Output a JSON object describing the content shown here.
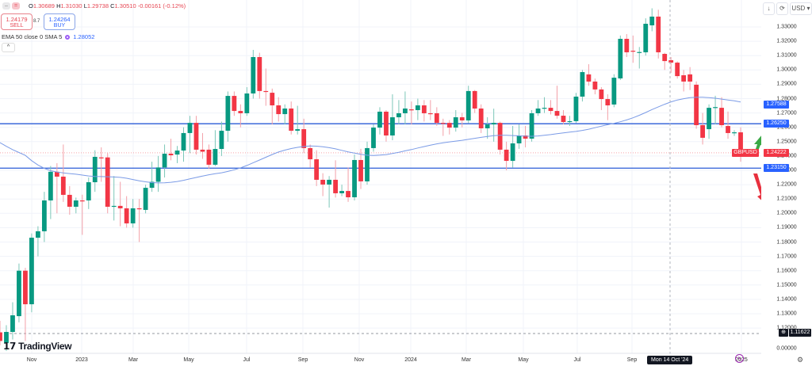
{
  "header": {
    "ohlc": {
      "o_label": "O",
      "o": "1.30689",
      "h_label": "H",
      "h": "1.31030",
      "l_label": "L",
      "l": "1.29738",
      "c_label": "C",
      "c": "1.30510",
      "change": "-0.00161 (-0.12%)"
    },
    "sell": {
      "price": "1.24179",
      "label": "SELL"
    },
    "buy": {
      "price": "1.24264",
      "label": "BUY"
    },
    "spread": "8.7",
    "indicator": {
      "label": "EMA 50 close 0 SMA 5",
      "value": "1.28052"
    },
    "currency": "USD"
  },
  "colors": {
    "up": "#089981",
    "down": "#f23645",
    "level_line": "#2a5bd7",
    "ema": "#7b9be6",
    "price_tag": "#f23645",
    "level_tag": "#2962ff"
  },
  "icons": [
    "minus-icon",
    "toggle-icon",
    "chevron-up-icon",
    "download-arrow-icon",
    "refresh-icon",
    "chevron-down-icon",
    "plus-circle-icon",
    "lightning-icon",
    "settings-icon",
    "arrow-up-icon",
    "arrow-down-icon"
  ],
  "symbol": "GBPUSD",
  "brand": "TradingView",
  "crosshair_date": "Mon 14 Oct '24",
  "chart_data": {
    "type": "candlestick",
    "title": "",
    "xlabel": "",
    "ylabel": "",
    "ylim": [
      1.11,
      1.34
    ],
    "grid": true,
    "y_ticks": [
      "1.33000",
      "1.32000",
      "1.31000",
      "1.30000",
      "1.29000",
      "1.28000",
      "1.27000",
      "1.26000",
      "1.25000",
      "1.24000",
      "1.23000",
      "1.22000",
      "1.21000",
      "1.20000",
      "1.19000",
      "1.18000",
      "1.17000",
      "1.16000",
      "1.15000",
      "1.14000",
      "1.13000",
      "1.12000"
    ],
    "y_zero_label": "0.00000",
    "x_ticks": [
      "Nov",
      "2023",
      "Mar",
      "May",
      "Jul",
      "Sep",
      "Nov",
      "2024",
      "Mar",
      "May",
      "Jul",
      "Sep",
      "2025"
    ],
    "levels": [
      {
        "value": 1.2625,
        "label": "1.26250"
      },
      {
        "value": 1.2315,
        "label": "1.23150"
      }
    ],
    "ema_last": {
      "value": 1.27588,
      "label": "1.27588"
    },
    "last_price": {
      "value": 1.24222,
      "label": "1.24222"
    },
    "marker_price": {
      "value": 1.11622,
      "label": "1.11622"
    },
    "fields": [
      "open",
      "high",
      "low",
      "close"
    ],
    "candles": [
      [
        1.117,
        1.125,
        1.108,
        1.111
      ],
      [
        1.1095,
        1.122,
        1.104,
        1.1173
      ],
      [
        1.1173,
        1.138,
        1.112,
        1.1289
      ],
      [
        1.1283,
        1.165,
        1.124,
        1.16
      ],
      [
        1.16,
        1.162,
        1.111,
        1.1366
      ],
      [
        1.1366,
        1.186,
        1.131,
        1.183
      ],
      [
        1.183,
        1.191,
        1.17,
        1.1875
      ],
      [
        1.1875,
        1.215,
        1.18,
        1.209
      ],
      [
        1.209,
        1.233,
        1.196,
        1.229
      ],
      [
        1.229,
        1.235,
        1.2,
        1.2256
      ],
      [
        1.2256,
        1.248,
        1.208,
        1.2129
      ],
      [
        1.2129,
        1.219,
        1.199,
        1.2046
      ],
      [
        1.2046,
        1.211,
        1.2,
        1.209
      ],
      [
        1.209,
        1.213,
        1.185,
        1.2085
      ],
      [
        1.209,
        1.225,
        1.203,
        1.2217
      ],
      [
        1.2217,
        1.244,
        1.215,
        1.2394
      ],
      [
        1.239,
        1.246,
        1.222,
        1.2385
      ],
      [
        1.239,
        1.242,
        1.2,
        1.2046
      ],
      [
        1.2046,
        1.226,
        1.195,
        1.2052
      ],
      [
        1.2052,
        1.222,
        1.191,
        1.2035
      ],
      [
        1.2035,
        1.212,
        1.19,
        1.193
      ],
      [
        1.193,
        1.21,
        1.19,
        1.2035
      ],
      [
        1.2035,
        1.21,
        1.18,
        1.203
      ],
      [
        1.2024,
        1.22,
        1.2,
        1.2178
      ],
      [
        1.2178,
        1.236,
        1.215,
        1.222
      ],
      [
        1.222,
        1.24,
        1.215,
        1.232
      ],
      [
        1.232,
        1.248,
        1.225,
        1.2416
      ],
      [
        1.2416,
        1.252,
        1.237,
        1.2405
      ],
      [
        1.241,
        1.247,
        1.235,
        1.2438
      ],
      [
        1.2438,
        1.26,
        1.236,
        1.256
      ],
      [
        1.256,
        1.268,
        1.242,
        1.2631
      ],
      [
        1.2631,
        1.268,
        1.241,
        1.2444
      ],
      [
        1.2444,
        1.256,
        1.238,
        1.243
      ],
      [
        1.2444,
        1.248,
        1.231,
        1.2339
      ],
      [
        1.2339,
        1.258,
        1.233,
        1.2449
      ],
      [
        1.2449,
        1.264,
        1.24,
        1.2576
      ],
      [
        1.2576,
        1.285,
        1.25,
        1.2819
      ],
      [
        1.2819,
        1.285,
        1.268,
        1.2714
      ],
      [
        1.2714,
        1.276,
        1.26,
        1.2698
      ],
      [
        1.2698,
        1.288,
        1.268,
        1.2836
      ],
      [
        1.2836,
        1.314,
        1.28,
        1.309
      ],
      [
        1.309,
        1.312,
        1.28,
        1.2853
      ],
      [
        1.2853,
        1.301,
        1.275,
        1.2847
      ],
      [
        1.2841,
        1.287,
        1.262,
        1.2753
      ],
      [
        1.2753,
        1.281,
        1.264,
        1.2692
      ],
      [
        1.2692,
        1.276,
        1.262,
        1.2731
      ],
      [
        1.2731,
        1.278,
        1.255,
        1.2576
      ],
      [
        1.2576,
        1.275,
        1.255,
        1.2587
      ],
      [
        1.2587,
        1.266,
        1.242,
        1.2455
      ],
      [
        1.2455,
        1.248,
        1.232,
        1.2377
      ],
      [
        1.2377,
        1.244,
        1.219,
        1.2234
      ],
      [
        1.2234,
        1.228,
        1.212,
        1.2201
      ],
      [
        1.2201,
        1.226,
        1.204,
        1.2234
      ],
      [
        1.2234,
        1.237,
        1.211,
        1.214
      ],
      [
        1.214,
        1.22,
        1.212,
        1.2156
      ],
      [
        1.2156,
        1.232,
        1.208,
        1.2112
      ],
      [
        1.2112,
        1.241,
        1.209,
        1.2372
      ],
      [
        1.2372,
        1.245,
        1.217,
        1.2223
      ],
      [
        1.2223,
        1.25,
        1.22,
        1.2455
      ],
      [
        1.2455,
        1.262,
        1.243,
        1.2598
      ],
      [
        1.2598,
        1.274,
        1.255,
        1.2709
      ],
      [
        1.2709,
        1.272,
        1.25,
        1.2543
      ],
      [
        1.2543,
        1.283,
        1.251,
        1.267
      ],
      [
        1.267,
        1.279,
        1.262,
        1.2698
      ],
      [
        1.2698,
        1.285,
        1.262,
        1.2731
      ],
      [
        1.2725,
        1.278,
        1.262,
        1.272
      ],
      [
        1.272,
        1.28,
        1.265,
        1.2753
      ],
      [
        1.2753,
        1.279,
        1.264,
        1.2698
      ],
      [
        1.2698,
        1.279,
        1.265,
        1.2693
      ],
      [
        1.2698,
        1.274,
        1.261,
        1.2631
      ],
      [
        1.2631,
        1.266,
        1.254,
        1.2626
      ],
      [
        1.2631,
        1.265,
        1.255,
        1.2598
      ],
      [
        1.2598,
        1.272,
        1.257,
        1.267
      ],
      [
        1.267,
        1.27,
        1.26,
        1.2648
      ],
      [
        1.2648,
        1.289,
        1.263,
        1.2853
      ],
      [
        1.2853,
        1.286,
        1.27,
        1.2731
      ],
      [
        1.2731,
        1.276,
        1.256,
        1.2593
      ],
      [
        1.2593,
        1.267,
        1.252,
        1.262
      ],
      [
        1.262,
        1.273,
        1.25,
        1.2631
      ],
      [
        1.2631,
        1.264,
        1.241,
        1.2444
      ],
      [
        1.2444,
        1.25,
        1.23,
        1.2366
      ],
      [
        1.2366,
        1.261,
        1.232,
        1.2488
      ],
      [
        1.2488,
        1.262,
        1.245,
        1.2543
      ],
      [
        1.2543,
        1.261,
        1.246,
        1.2521
      ],
      [
        1.2521,
        1.272,
        1.25,
        1.2698
      ],
      [
        1.2698,
        1.279,
        1.268,
        1.2731
      ],
      [
        1.2731,
        1.281,
        1.27,
        1.2736
      ],
      [
        1.2736,
        1.279,
        1.269,
        1.2714
      ],
      [
        1.2714,
        1.289,
        1.266,
        1.2681
      ],
      [
        1.2681,
        1.272,
        1.262,
        1.2637
      ],
      [
        1.2637,
        1.268,
        1.261,
        1.2643
      ],
      [
        1.2643,
        1.284,
        1.263,
        1.2814
      ],
      [
        1.2814,
        1.3,
        1.278,
        1.2985
      ],
      [
        1.2969,
        1.304,
        1.289,
        1.2919
      ],
      [
        1.2919,
        1.294,
        1.283,
        1.2864
      ],
      [
        1.2864,
        1.288,
        1.272,
        1.2797
      ],
      [
        1.2797,
        1.283,
        1.265,
        1.2753
      ],
      [
        1.2759,
        1.297,
        1.274,
        1.2946
      ],
      [
        1.2941,
        1.324,
        1.293,
        1.3217
      ],
      [
        1.3217,
        1.325,
        1.309,
        1.3123
      ],
      [
        1.3134,
        1.324,
        1.305,
        1.313
      ],
      [
        1.3123,
        1.316,
        1.301,
        1.3125
      ],
      [
        1.3123,
        1.336,
        1.31,
        1.3322
      ],
      [
        1.3311,
        1.343,
        1.327,
        1.3372
      ],
      [
        1.3372,
        1.342,
        1.308,
        1.3123
      ],
      [
        1.3112,
        1.312,
        1.3,
        1.3062
      ],
      [
        1.3068,
        1.309,
        1.298,
        1.3051
      ],
      [
        1.3051,
        1.306,
        1.294,
        1.2957
      ],
      [
        1.2963,
        1.3,
        1.285,
        1.2919
      ],
      [
        1.2969,
        1.302,
        1.286,
        1.2919
      ],
      [
        1.2897,
        1.292,
        1.259,
        1.2615
      ],
      [
        1.2615,
        1.27,
        1.248,
        1.2527
      ],
      [
        1.2587,
        1.276,
        1.252,
        1.2736
      ],
      [
        1.2736,
        1.282,
        1.262,
        1.2741
      ],
      [
        1.2736,
        1.281,
        1.26,
        1.2615
      ],
      [
        1.2609,
        1.271,
        1.252,
        1.256
      ],
      [
        1.256,
        1.258,
        1.254,
        1.2565
      ],
      [
        1.2565,
        1.26,
        1.236,
        1.2422
      ]
    ]
  }
}
